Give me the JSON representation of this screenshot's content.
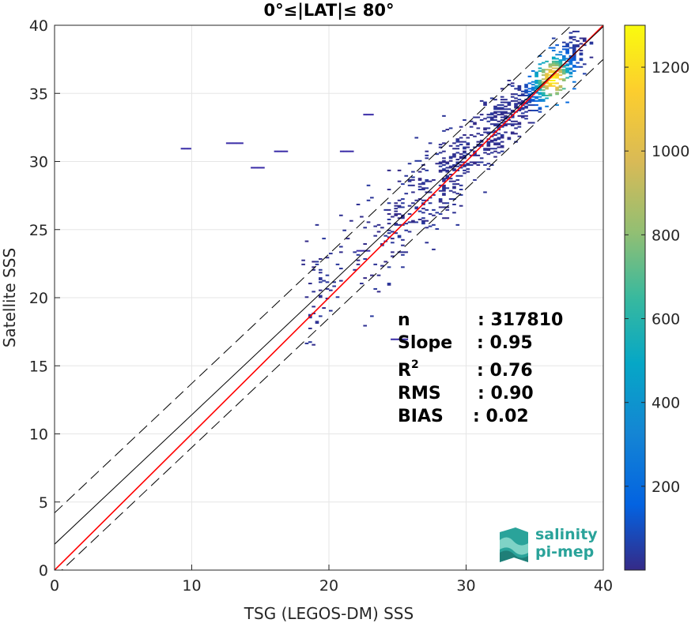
{
  "chart_data": {
    "type": "heatmap",
    "title": "0°≤|LAT|≤ 80°",
    "xlabel": "TSG (LEGOS-DM) SSS",
    "ylabel": "Satellite SSS",
    "xlim": [
      0,
      40
    ],
    "ylim": [
      0,
      40
    ],
    "xticks": [
      "0",
      "10",
      "20",
      "30",
      "40"
    ],
    "yticks": [
      "0",
      "5",
      "10",
      "15",
      "20",
      "25",
      "30",
      "35",
      "40"
    ],
    "grid": true,
    "colorbar": {
      "min": 0,
      "max": 1300,
      "ticks": [
        "200",
        "400",
        "600",
        "800",
        "1000",
        "1200"
      ],
      "colormap": "parula"
    },
    "lines": [
      {
        "kind": "identity",
        "color": "#ff0000",
        "slope": 1.0,
        "intercept": 0.0
      },
      {
        "kind": "regression",
        "color": "#000000",
        "slope": 0.95,
        "intercept": 1.9
      },
      {
        "kind": "regression-upper",
        "color": "#000000",
        "dashed": true,
        "slope": 0.95,
        "intercept": 4.2
      },
      {
        "kind": "regression-lower",
        "color": "#000000",
        "dashed": true,
        "slope": 0.95,
        "intercept": -0.5
      }
    ],
    "density_peak": {
      "x": 36.2,
      "y": 36.0,
      "count": 1250
    },
    "stats": [
      {
        "label": "n",
        "sup": "",
        "value": ": 317810"
      },
      {
        "label": "Slope",
        "sup": "",
        "value": ": 0.95"
      },
      {
        "label": "R",
        "sup": "2",
        "value": ": 0.76"
      },
      {
        "label": "RMS",
        "sup": "",
        "value": ": 0.90"
      },
      {
        "label": "BIAS",
        "sup": "",
        "value": ": 0.02"
      }
    ]
  },
  "logo": {
    "line1": "salinity",
    "line2": "pi-mep"
  }
}
